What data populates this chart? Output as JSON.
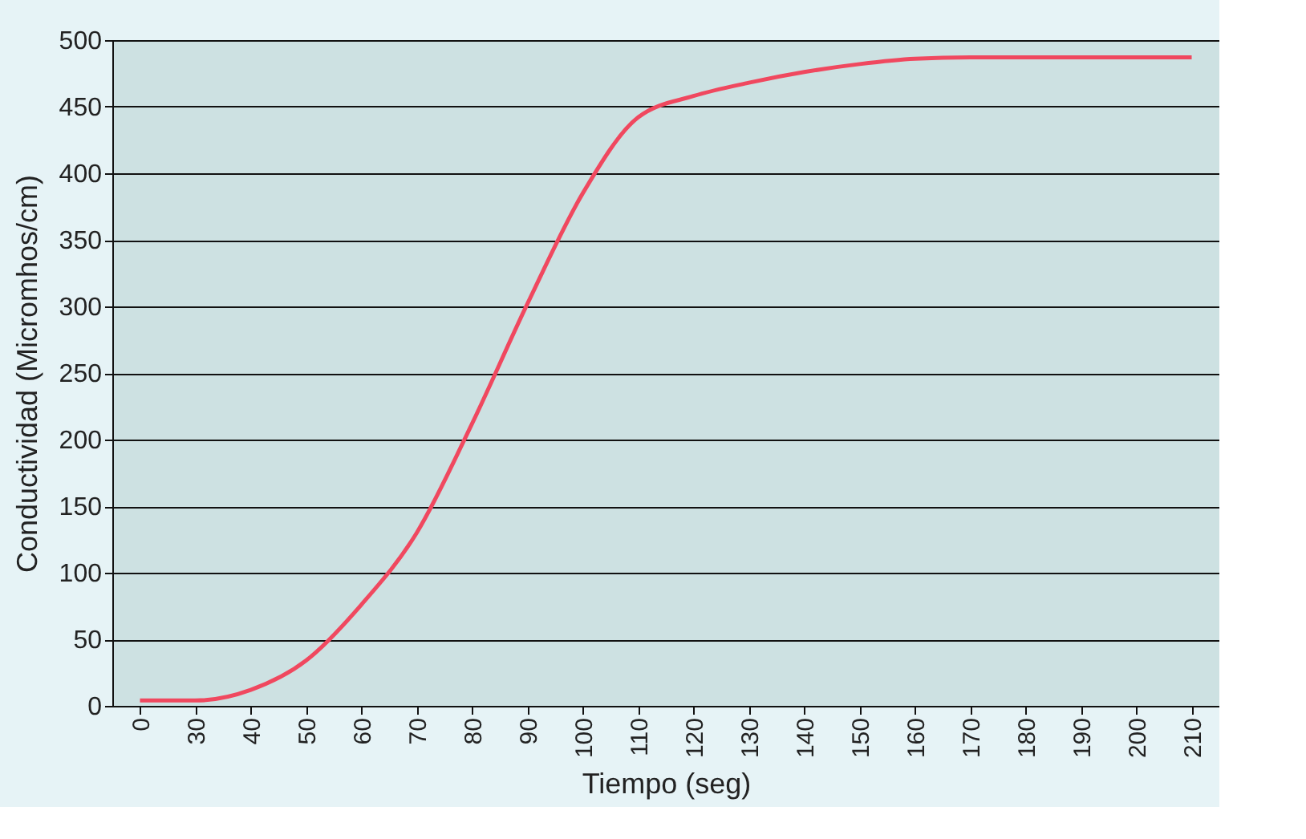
{
  "chart_data": {
    "type": "line",
    "xlabel": "Tiempo (seg)",
    "ylabel": "Conductividad (Micromhos/cm)",
    "categories": [
      "0",
      "30",
      "40",
      "50",
      "60",
      "70",
      "80",
      "90",
      "100",
      "110",
      "120",
      "130",
      "140",
      "150",
      "160",
      "170",
      "180",
      "190",
      "200",
      "210"
    ],
    "series": [
      {
        "color": "#f0485f",
        "values": [
          4,
          4,
          12,
          34,
          76,
          130,
          212,
          302,
          385,
          442,
          458,
          468,
          476,
          482,
          486,
          487,
          487,
          487,
          487,
          487
        ]
      }
    ],
    "ylim": [
      0,
      500
    ],
    "yticks": [
      0,
      50,
      100,
      150,
      200,
      250,
      300,
      350,
      400,
      450,
      500
    ],
    "grid": "y",
    "marker": "none",
    "line_style": "solid"
  }
}
